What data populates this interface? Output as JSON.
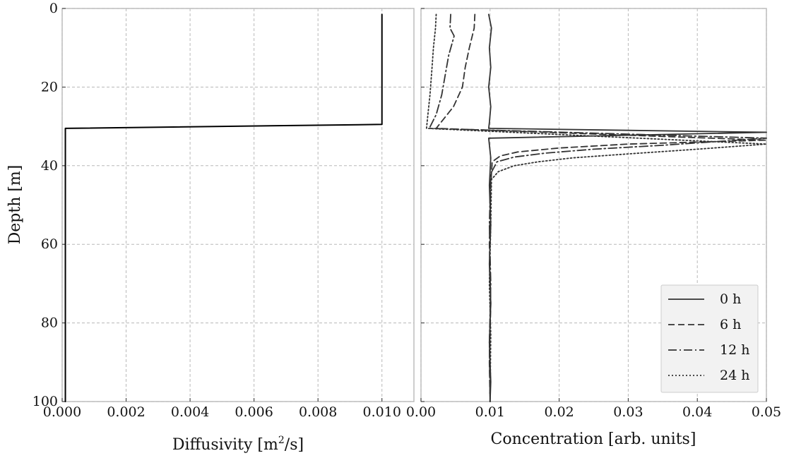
{
  "chart_data": [
    {
      "type": "line",
      "title": "",
      "xlabel": "Diffusivity [m$^2$/s]",
      "xlabel_parts": {
        "before": "Diffusivity [m",
        "sup": "2",
        "after": "/s]"
      },
      "ylabel": "Depth [m]",
      "xlim": [
        0.0,
        0.011
      ],
      "ylim": [
        100,
        0
      ],
      "y_inverted": true,
      "grid": true,
      "xticks": [
        0.0,
        0.002,
        0.004,
        0.006,
        0.008,
        0.01
      ],
      "xtick_labels": [
        "0.000",
        "0.002",
        "0.004",
        "0.006",
        "0.008",
        "0.010"
      ],
      "yticks": [
        0,
        20,
        40,
        60,
        80,
        100
      ],
      "ytick_labels": [
        "0",
        "20",
        "40",
        "60",
        "80",
        "100"
      ],
      "series": [
        {
          "name": "",
          "color": "#000000",
          "style": "solid",
          "points": [
            [
              0.01,
              1.5
            ],
            [
              0.01,
              29.5
            ],
            [
              0.0001,
              30.5
            ],
            [
              0.0001,
              100
            ]
          ]
        }
      ]
    },
    {
      "type": "line",
      "title": "",
      "xlabel": "Concentration [arb. units]",
      "ylabel": "",
      "xlim": [
        0.0,
        0.05
      ],
      "ylim": [
        100,
        0
      ],
      "y_inverted": true,
      "grid": true,
      "xticks": [
        0.0,
        0.01,
        0.02,
        0.03,
        0.04,
        0.05
      ],
      "xtick_labels": [
        "0.00",
        "0.01",
        "0.02",
        "0.03",
        "0.04",
        "0.05"
      ],
      "yticks": [
        0,
        20,
        40,
        60,
        80,
        100
      ],
      "legend_position": "lower-right",
      "series": [
        {
          "name": "0 h",
          "color": "#333333",
          "style": "solid",
          "points": [
            [
              0.0098,
              1.5
            ],
            [
              0.0102,
              5
            ],
            [
              0.0099,
              10
            ],
            [
              0.0101,
              15
            ],
            [
              0.0098,
              20
            ],
            [
              0.0101,
              25
            ],
            [
              0.0099,
              29
            ],
            [
              0.0098,
              30.5
            ],
            [
              0.05,
              31.5
            ],
            [
              0.0098,
              33
            ],
            [
              0.0101,
              38
            ],
            [
              0.0099,
              45
            ],
            [
              0.0101,
              55
            ],
            [
              0.0099,
              65
            ],
            [
              0.0101,
              75
            ],
            [
              0.0099,
              85
            ],
            [
              0.0101,
              95
            ],
            [
              0.01,
              100
            ]
          ]
        },
        {
          "name": "6 h",
          "color": "#333333",
          "style": "dashed",
          "points": [
            [
              0.0078,
              1.5
            ],
            [
              0.0077,
              5
            ],
            [
              0.007,
              10
            ],
            [
              0.0064,
              15
            ],
            [
              0.006,
              20
            ],
            [
              0.0047,
              25
            ],
            [
              0.0022,
              30.5
            ],
            [
              0.05,
              33.5
            ],
            [
              0.03,
              34.5
            ],
            [
              0.02,
              35.5
            ],
            [
              0.014,
              36.5
            ],
            [
              0.0115,
              37.5
            ],
            [
              0.0103,
              39
            ],
            [
              0.0101,
              45
            ],
            [
              0.0099,
              60
            ],
            [
              0.0101,
              75
            ],
            [
              0.0099,
              90
            ],
            [
              0.01,
              100
            ]
          ]
        },
        {
          "name": "12 h",
          "color": "#333333",
          "style": "dashdot",
          "points": [
            [
              0.0043,
              1.5
            ],
            [
              0.0042,
              5
            ],
            [
              0.0048,
              7
            ],
            [
              0.004,
              12
            ],
            [
              0.0035,
              17
            ],
            [
              0.003,
              22
            ],
            [
              0.0022,
              27
            ],
            [
              0.0012,
              30.5
            ],
            [
              0.05,
              33
            ],
            [
              0.035,
              34.8
            ],
            [
              0.025,
              35.8
            ],
            [
              0.018,
              36.8
            ],
            [
              0.0135,
              37.8
            ],
            [
              0.011,
              39
            ],
            [
              0.0101,
              42
            ],
            [
              0.0099,
              55
            ],
            [
              0.0101,
              70
            ],
            [
              0.0099,
              85
            ],
            [
              0.01,
              100
            ]
          ]
        },
        {
          "name": "24 h",
          "color": "#333333",
          "style": "dotted",
          "points": [
            [
              0.0022,
              1.5
            ],
            [
              0.0021,
              5
            ],
            [
              0.0018,
              10
            ],
            [
              0.0016,
              15
            ],
            [
              0.0013,
              22
            ],
            [
              0.001,
              27
            ],
            [
              0.0008,
              30.5
            ],
            [
              0.05,
              34.5
            ],
            [
              0.04,
              35.8
            ],
            [
              0.03,
              37
            ],
            [
              0.022,
              38
            ],
            [
              0.017,
              39
            ],
            [
              0.0135,
              40
            ],
            [
              0.0112,
              41.5
            ],
            [
              0.0102,
              43.5
            ],
            [
              0.0101,
              55
            ],
            [
              0.0099,
              70
            ],
            [
              0.0101,
              83
            ],
            [
              0.01,
              100
            ]
          ]
        }
      ]
    }
  ]
}
